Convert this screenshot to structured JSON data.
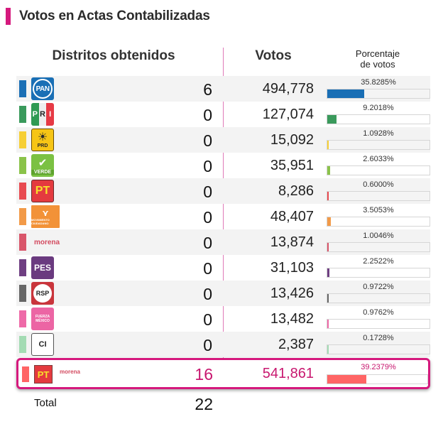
{
  "title": "Votos en Actas Contabilizadas",
  "headers": {
    "distritos": "Distritos obtenidos",
    "votos": "Votos",
    "porcentaje_line1": "Porcentaje",
    "porcentaje_line2": "de votos"
  },
  "colors": {
    "accent": "#d5197d",
    "divider": "#e07ab8"
  },
  "rows": [
    {
      "party": "PAN",
      "logo_text": "PAN",
      "color": "#1a6fb5",
      "distritos": "6",
      "votos": "494,778",
      "porcentaje": "35.8285%",
      "pct_value": 35.8285
    },
    {
      "party": "PRI",
      "logo_text": "PRI",
      "color": "#3a9a5c",
      "distritos": "0",
      "votos": "127,074",
      "porcentaje": "9.2018%",
      "pct_value": 9.2018
    },
    {
      "party": "PRD",
      "logo_text": "PRD",
      "color": "#f6cf35",
      "distritos": "0",
      "votos": "15,092",
      "porcentaje": "1.0928%",
      "pct_value": 1.0928
    },
    {
      "party": "VERDE",
      "logo_text": "VERDE",
      "color": "#8bc34a",
      "distritos": "0",
      "votos": "35,951",
      "porcentaje": "2.6033%",
      "pct_value": 2.6033
    },
    {
      "party": "PT",
      "logo_text": "PT",
      "color": "#e84a50",
      "distritos": "0",
      "votos": "8,286",
      "porcentaje": "0.6000%",
      "pct_value": 0.6
    },
    {
      "party": "MOVIMIENTO CIUDADANO",
      "logo_text": "MOVIMIENTO CIUDADANO",
      "color": "#f29a48",
      "distritos": "0",
      "votos": "48,407",
      "porcentaje": "3.5053%",
      "pct_value": 3.5053
    },
    {
      "party": "morena",
      "logo_text": "morena",
      "color": "#d9566a",
      "distritos": "0",
      "votos": "13,874",
      "porcentaje": "1.0046%",
      "pct_value": 1.0046
    },
    {
      "party": "PES",
      "logo_text": "PES",
      "color": "#6f3f82",
      "distritos": "0",
      "votos": "31,103",
      "porcentaje": "2.2522%",
      "pct_value": 2.2522
    },
    {
      "party": "RSP",
      "logo_text": "RSP",
      "color": "#666666",
      "distritos": "0",
      "votos": "13,426",
      "porcentaje": "0.9722%",
      "pct_value": 0.9722
    },
    {
      "party": "FUERZA MÉXICO",
      "logo_text": "FUERZA MÉXICO",
      "color": "#ee6aa8",
      "distritos": "0",
      "votos": "13,482",
      "porcentaje": "0.9762%",
      "pct_value": 0.9762
    },
    {
      "party": "CI",
      "logo_text": "CI",
      "color": "#a3dbb3",
      "distritos": "0",
      "votos": "2,387",
      "porcentaje": "0.1728%",
      "pct_value": 0.1728
    }
  ],
  "coalition": {
    "logo_pt": "PT",
    "logo_morena": "morena",
    "color": "#ff6565",
    "distritos": "16",
    "votos": "541,861",
    "porcentaje": "39.2379%",
    "pct_value": 39.2379
  },
  "total": {
    "label": "Total",
    "value": "22"
  }
}
